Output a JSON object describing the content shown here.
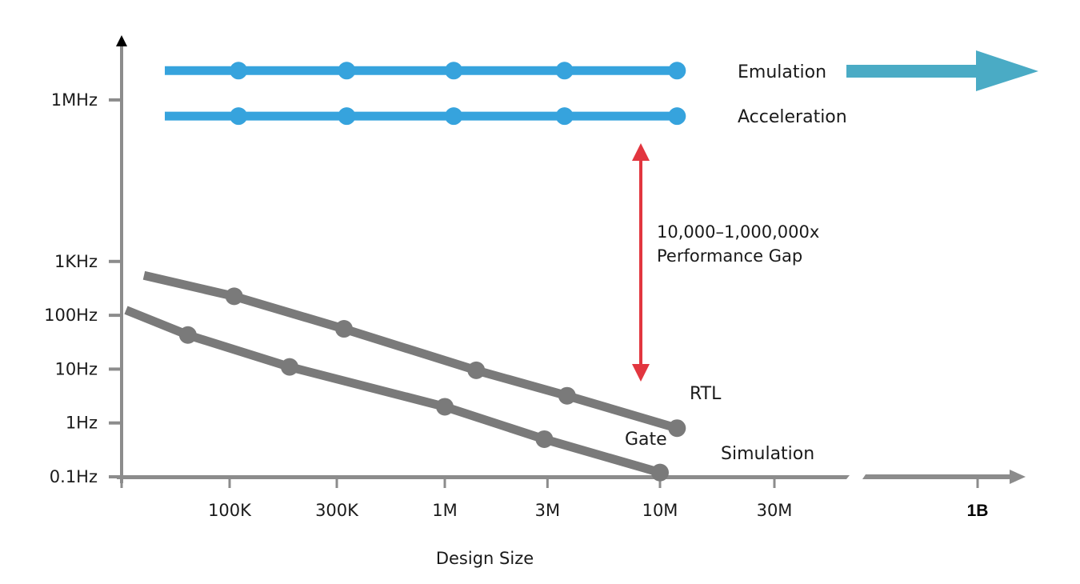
{
  "chart_data": {
    "type": "line",
    "title": "",
    "xlabel": "Design Size",
    "ylabel": "",
    "x_scale": "log",
    "y_scale": "log",
    "xlim": [
      30000,
      1000000000
    ],
    "ylim": [
      0.1,
      5000000
    ],
    "grid": false,
    "x_ticks": [
      {
        "value": 100000,
        "label": "100K"
      },
      {
        "value": 300000,
        "label": "300K"
      },
      {
        "value": 1000000,
        "label": "1M"
      },
      {
        "value": 3000000,
        "label": "3M"
      },
      {
        "value": 10000000,
        "label": "10M"
      },
      {
        "value": 30000000,
        "label": "30M"
      },
      {
        "value": 1000000000,
        "label": "1B"
      }
    ],
    "y_ticks": [
      {
        "value": 0.1,
        "label": "0.1Hz"
      },
      {
        "value": 1,
        "label": "1Hz"
      },
      {
        "value": 10,
        "label": "10Hz"
      },
      {
        "value": 100,
        "label": "100Hz"
      },
      {
        "value": 1000,
        "label": "1KHz"
      },
      {
        "value": 1000000,
        "label": "1MHz"
      }
    ],
    "series": [
      {
        "name": "Emulation",
        "color": "#36a3dd",
        "line_start_x": 50000,
        "x": [
          110000,
          350000,
          1100000,
          3600000,
          12000000
        ],
        "values": [
          3500000,
          3500000,
          3500000,
          3500000,
          3500000
        ]
      },
      {
        "name": "Acceleration",
        "color": "#36a3dd",
        "line_start_x": 50000,
        "x": [
          110000,
          350000,
          1100000,
          3600000,
          12000000
        ],
        "values": [
          500000,
          500000,
          500000,
          500000,
          500000
        ]
      },
      {
        "name": "RTL",
        "color": "#7a7a7a",
        "line_start": [
          40000,
          550
        ],
        "x": [
          105000,
          340000,
          1400000,
          3700000,
          12000000
        ],
        "values": [
          225,
          56,
          9.5,
          3.2,
          0.8
        ]
      },
      {
        "name": "Gate",
        "color": "#7a7a7a",
        "line_start": [
          33000,
          125
        ],
        "x": [
          64000,
          190000,
          1000000,
          2900000,
          10000000
        ],
        "values": [
          43,
          11,
          2.0,
          0.5,
          0.12
        ]
      }
    ],
    "annotations": {
      "gap_line1": "10,000–1,000,000x",
      "gap_line2": "Performance Gap",
      "gap_color": "#e2363f",
      "simulation_label": "Simulation",
      "emulation_arrow_color": "#4aabc5"
    }
  }
}
